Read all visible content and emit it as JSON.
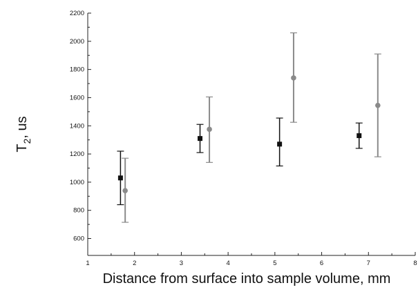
{
  "chart_data": {
    "type": "scatter",
    "title": "",
    "xlabel": "Distance from surface into sample volume, mm",
    "ylabel_main": "T",
    "ylabel_sub": "2",
    "ylabel_rest": ", us",
    "xlim": [
      1,
      8
    ],
    "ylim": [
      480,
      2200
    ],
    "x_ticks": [
      1,
      2,
      3,
      4,
      5,
      6,
      7,
      8
    ],
    "y_ticks": [
      600,
      800,
      1000,
      1200,
      1400,
      1600,
      1800,
      2000,
      2200
    ],
    "grid": false,
    "series": [
      {
        "color": "#111111",
        "marker": "square",
        "points": [
          {
            "x": 1.7,
            "y": 1030,
            "err_low": 840,
            "err_high": 1220
          },
          {
            "x": 3.4,
            "y": 1310,
            "err_low": 1210,
            "err_high": 1410
          },
          {
            "x": 5.1,
            "y": 1270,
            "err_low": 1115,
            "err_high": 1455
          },
          {
            "x": 6.8,
            "y": 1330,
            "err_low": 1240,
            "err_high": 1420
          }
        ]
      },
      {
        "color": "#8a8a8a",
        "marker": "circle",
        "points": [
          {
            "x": 1.8,
            "y": 940,
            "err_low": 715,
            "err_high": 1170
          },
          {
            "x": 3.6,
            "y": 1375,
            "err_low": 1140,
            "err_high": 1605
          },
          {
            "x": 5.4,
            "y": 1740,
            "err_low": 1425,
            "err_high": 2060
          },
          {
            "x": 7.2,
            "y": 1545,
            "err_low": 1180,
            "err_high": 1910
          }
        ]
      }
    ]
  }
}
